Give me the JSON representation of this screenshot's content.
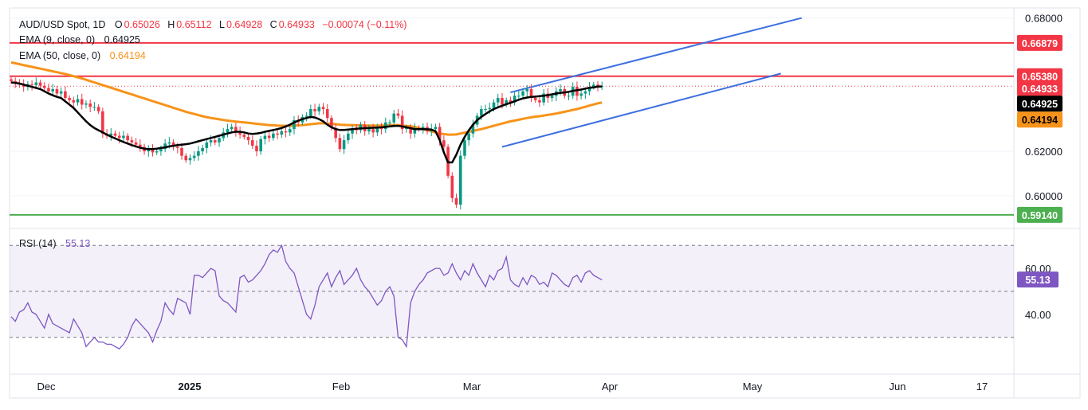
{
  "header": {
    "symbol": "AUD/USD Spot, 1D",
    "o_label": "O",
    "o_value": "0.65026",
    "h_label": "H",
    "h_value": "0.65112",
    "l_label": "L",
    "l_value": "0.64928",
    "c_label": "C",
    "c_value": "0.64933",
    "change": "−0.00074 (−0.11%)",
    "ema9_label": "EMA (9, close, 0)",
    "ema9_value": "0.64925",
    "ema50_label": "EMA (50, close, 0)",
    "ema50_value": "0.64194",
    "rsi_label": "RSI (14)",
    "rsi_value": "55.13"
  },
  "colors": {
    "up": "#089981",
    "down": "#f23645",
    "ema9": "#000000",
    "ema50": "#f7931a",
    "resistance": "#f23645",
    "support": "#4caf50",
    "channel": "#3d6fe0",
    "rsi": "#7e57c2"
  },
  "chart_data": [
    {
      "type": "candlestick",
      "title": "AUD/USD Spot, 1D",
      "x_ticks": [
        "Dec",
        "2025",
        "Feb",
        "Mar",
        "Apr",
        "May",
        "Jun",
        "17"
      ],
      "y_ticks": [
        "0.68000",
        "0.62000",
        "0.60000"
      ],
      "ylim": [
        0.586,
        0.6845
      ],
      "price_tags": [
        {
          "label": "0.66879",
          "value": 0.66879,
          "kind": "resistance"
        },
        {
          "label": "0.65380",
          "value": 0.6538,
          "kind": "resistance"
        },
        {
          "label": "0.64933",
          "value": 0.64933,
          "kind": "close"
        },
        {
          "label": "0.64925",
          "value": 0.64925,
          "kind": "ema9"
        },
        {
          "label": "0.64194",
          "value": 0.64194,
          "kind": "ema50"
        },
        {
          "label": "0.59140",
          "value": 0.5914,
          "kind": "support"
        }
      ],
      "horizontal_lines": [
        {
          "value": 0.66879,
          "color": "resistance"
        },
        {
          "value": 0.6538,
          "color": "resistance"
        },
        {
          "value": 0.5914,
          "color": "support"
        }
      ],
      "channel": {
        "upper": [
          [
            120,
            0.6465
          ],
          [
            190,
            0.68
          ]
        ],
        "lower": [
          [
            118,
            0.622
          ],
          [
            185,
            0.655
          ]
        ]
      },
      "close_series": [
        0.6516,
        0.6505,
        0.65,
        0.649,
        0.6502,
        0.6498,
        0.651,
        0.6495,
        0.6485,
        0.647,
        0.648,
        0.646,
        0.647,
        0.644,
        0.643,
        0.642,
        0.6435,
        0.641,
        0.6415,
        0.64,
        0.64,
        0.638,
        0.628,
        0.627,
        0.628,
        0.627,
        0.626,
        0.627,
        0.625,
        0.624,
        0.623,
        0.622,
        0.62,
        0.621,
        0.6195,
        0.62,
        0.621,
        0.6235,
        0.624,
        0.622,
        0.6215,
        0.618,
        0.616,
        0.617,
        0.618,
        0.62,
        0.6215,
        0.624,
        0.625,
        0.624,
        0.626,
        0.6285,
        0.63,
        0.631,
        0.629,
        0.6275,
        0.6265,
        0.625,
        0.6225,
        0.62,
        0.6255,
        0.627,
        0.626,
        0.628,
        0.6275,
        0.629,
        0.6285,
        0.63,
        0.634,
        0.633,
        0.6355,
        0.636,
        0.639,
        0.638,
        0.64,
        0.639,
        0.635,
        0.6305,
        0.626,
        0.621,
        0.625,
        0.628,
        0.63,
        0.6295,
        0.632,
        0.629,
        0.63,
        0.6285,
        0.631,
        0.63,
        0.633,
        0.633,
        0.637,
        0.636,
        0.63,
        0.6305,
        0.628,
        0.6305,
        0.63,
        0.631,
        0.629,
        0.63,
        0.631,
        0.625,
        0.622,
        0.609,
        0.599,
        0.596,
        0.618,
        0.625,
        0.628,
        0.632,
        0.636,
        0.639,
        0.639,
        0.6395,
        0.642,
        0.644,
        0.641,
        0.643,
        0.642,
        0.645,
        0.645,
        0.647,
        0.648,
        0.644,
        0.643,
        0.642,
        0.646,
        0.644,
        0.645,
        0.647,
        0.648,
        0.645,
        0.645,
        0.649,
        0.645,
        0.646,
        0.647,
        0.649,
        0.65,
        0.649,
        0.6493
      ],
      "ema9_series": [
        0.651,
        0.6508,
        0.6505,
        0.65,
        0.6495,
        0.649,
        0.6485,
        0.648,
        0.647,
        0.646,
        0.6452,
        0.6445,
        0.644,
        0.6425,
        0.641,
        0.6395,
        0.6375,
        0.6355,
        0.6335,
        0.6318,
        0.6305,
        0.6295,
        0.6285,
        0.6275,
        0.6266,
        0.6258,
        0.625,
        0.6242,
        0.6235,
        0.6228,
        0.6222,
        0.6216,
        0.6212,
        0.621,
        0.621,
        0.6212,
        0.6215,
        0.6218,
        0.6222,
        0.6225,
        0.6228,
        0.623,
        0.6232,
        0.6235,
        0.624,
        0.6245,
        0.625,
        0.6255,
        0.626,
        0.6265,
        0.627,
        0.6275,
        0.628,
        0.6285,
        0.6288,
        0.6288,
        0.6285,
        0.628,
        0.6278,
        0.628,
        0.6283,
        0.6288,
        0.6292,
        0.6296,
        0.63,
        0.6305,
        0.6312,
        0.632,
        0.633,
        0.6338,
        0.6345,
        0.635,
        0.6355,
        0.6352,
        0.6345,
        0.6335,
        0.632,
        0.6308,
        0.63,
        0.6296,
        0.6296,
        0.6298,
        0.63,
        0.6302,
        0.6303,
        0.6304,
        0.6305,
        0.6306,
        0.6307,
        0.6308,
        0.631,
        0.6312,
        0.6314,
        0.6315,
        0.6312,
        0.6308,
        0.6304,
        0.63,
        0.63,
        0.63,
        0.6299,
        0.6298,
        0.629,
        0.625,
        0.6195,
        0.615,
        0.615,
        0.6185,
        0.623,
        0.6265,
        0.6295,
        0.632,
        0.634,
        0.6355,
        0.6368,
        0.638,
        0.639,
        0.6398,
        0.6405,
        0.6412,
        0.6418,
        0.6425,
        0.6432,
        0.6438,
        0.6442,
        0.6445,
        0.6446,
        0.6448,
        0.645,
        0.6453,
        0.6456,
        0.646,
        0.6463,
        0.6465,
        0.6468,
        0.6472,
        0.6475,
        0.6478,
        0.6482,
        0.6486,
        0.6488,
        0.6491,
        0.6492
      ],
      "ema50_series": [
        0.66,
        0.6596,
        0.6592,
        0.6588,
        0.6584,
        0.658,
        0.6576,
        0.6572,
        0.6568,
        0.6564,
        0.656,
        0.6556,
        0.6552,
        0.6548,
        0.6543,
        0.6538,
        0.6533,
        0.6528,
        0.6522,
        0.6516,
        0.651,
        0.6504,
        0.6498,
        0.6492,
        0.6486,
        0.648,
        0.6474,
        0.6468,
        0.6462,
        0.6456,
        0.645,
        0.6444,
        0.6438,
        0.6432,
        0.6426,
        0.642,
        0.6414,
        0.6408,
        0.6402,
        0.6396,
        0.639,
        0.6384,
        0.6378,
        0.6373,
        0.6368,
        0.6363,
        0.6358,
        0.6354,
        0.635,
        0.6347,
        0.6344,
        0.6341,
        0.6338,
        0.6336,
        0.6334,
        0.6332,
        0.633,
        0.6328,
        0.6326,
        0.6324,
        0.6322,
        0.632,
        0.6318,
        0.6317,
        0.6316,
        0.6315,
        0.6315,
        0.6315,
        0.6316,
        0.6317,
        0.6318,
        0.632,
        0.6322,
        0.6324,
        0.6326,
        0.6326,
        0.6325,
        0.6324,
        0.6322,
        0.632,
        0.6319,
        0.6318,
        0.6318,
        0.6317,
        0.6317,
        0.6316,
        0.6316,
        0.6316,
        0.6316,
        0.6316,
        0.6317,
        0.6318,
        0.6318,
        0.6318,
        0.6316,
        0.6314,
        0.6312,
        0.631,
        0.6305,
        0.63,
        0.6295,
        0.629,
        0.6285,
        0.628,
        0.6278,
        0.6275,
        0.6275,
        0.6276,
        0.628,
        0.6284,
        0.6288,
        0.6292,
        0.6296,
        0.63,
        0.6305,
        0.631,
        0.6315,
        0.632,
        0.6325,
        0.633,
        0.6335,
        0.6338,
        0.6342,
        0.6346,
        0.635,
        0.6353,
        0.6356,
        0.6358,
        0.6361,
        0.6364,
        0.6367,
        0.637,
        0.6374,
        0.6378,
        0.6382,
        0.6386,
        0.639,
        0.6395,
        0.64,
        0.6406,
        0.6411,
        0.6416,
        0.6419
      ]
    },
    {
      "type": "line",
      "title": "RSI (14)",
      "y_ticks": [
        "60.00",
        "40.00"
      ],
      "ylim": [
        14,
        77
      ],
      "bands": [
        70,
        50,
        30
      ],
      "current_label": "55.13",
      "values": [
        39,
        37,
        41,
        42,
        45,
        41,
        40,
        37,
        34,
        40,
        36,
        35,
        34,
        33,
        32,
        38,
        35,
        32,
        26,
        28,
        30,
        28,
        28,
        27,
        27,
        26,
        25,
        27,
        30,
        35,
        38,
        36,
        34,
        32,
        28,
        33,
        37,
        45,
        42,
        40,
        47,
        46,
        45,
        40,
        57,
        57,
        56,
        58,
        60,
        59,
        48,
        46,
        45,
        43,
        41,
        56,
        57,
        54,
        55,
        57,
        59,
        62,
        66,
        68,
        67,
        70,
        63,
        60,
        58,
        52,
        46,
        40,
        38,
        44,
        52,
        55,
        58,
        52,
        56,
        59,
        53,
        55,
        57,
        60,
        55,
        52,
        50,
        47,
        44,
        46,
        50,
        52,
        48,
        30,
        29,
        26,
        45,
        50,
        53,
        55,
        58,
        59,
        60,
        60,
        57,
        58,
        62,
        58,
        55,
        59,
        57,
        62,
        58,
        55,
        52,
        57,
        55,
        59,
        60,
        65,
        55,
        53,
        52,
        56,
        53,
        57,
        56,
        53,
        54,
        52,
        58,
        57,
        55,
        53,
        52,
        56,
        57,
        54,
        58,
        59,
        57,
        56,
        55
      ]
    }
  ]
}
